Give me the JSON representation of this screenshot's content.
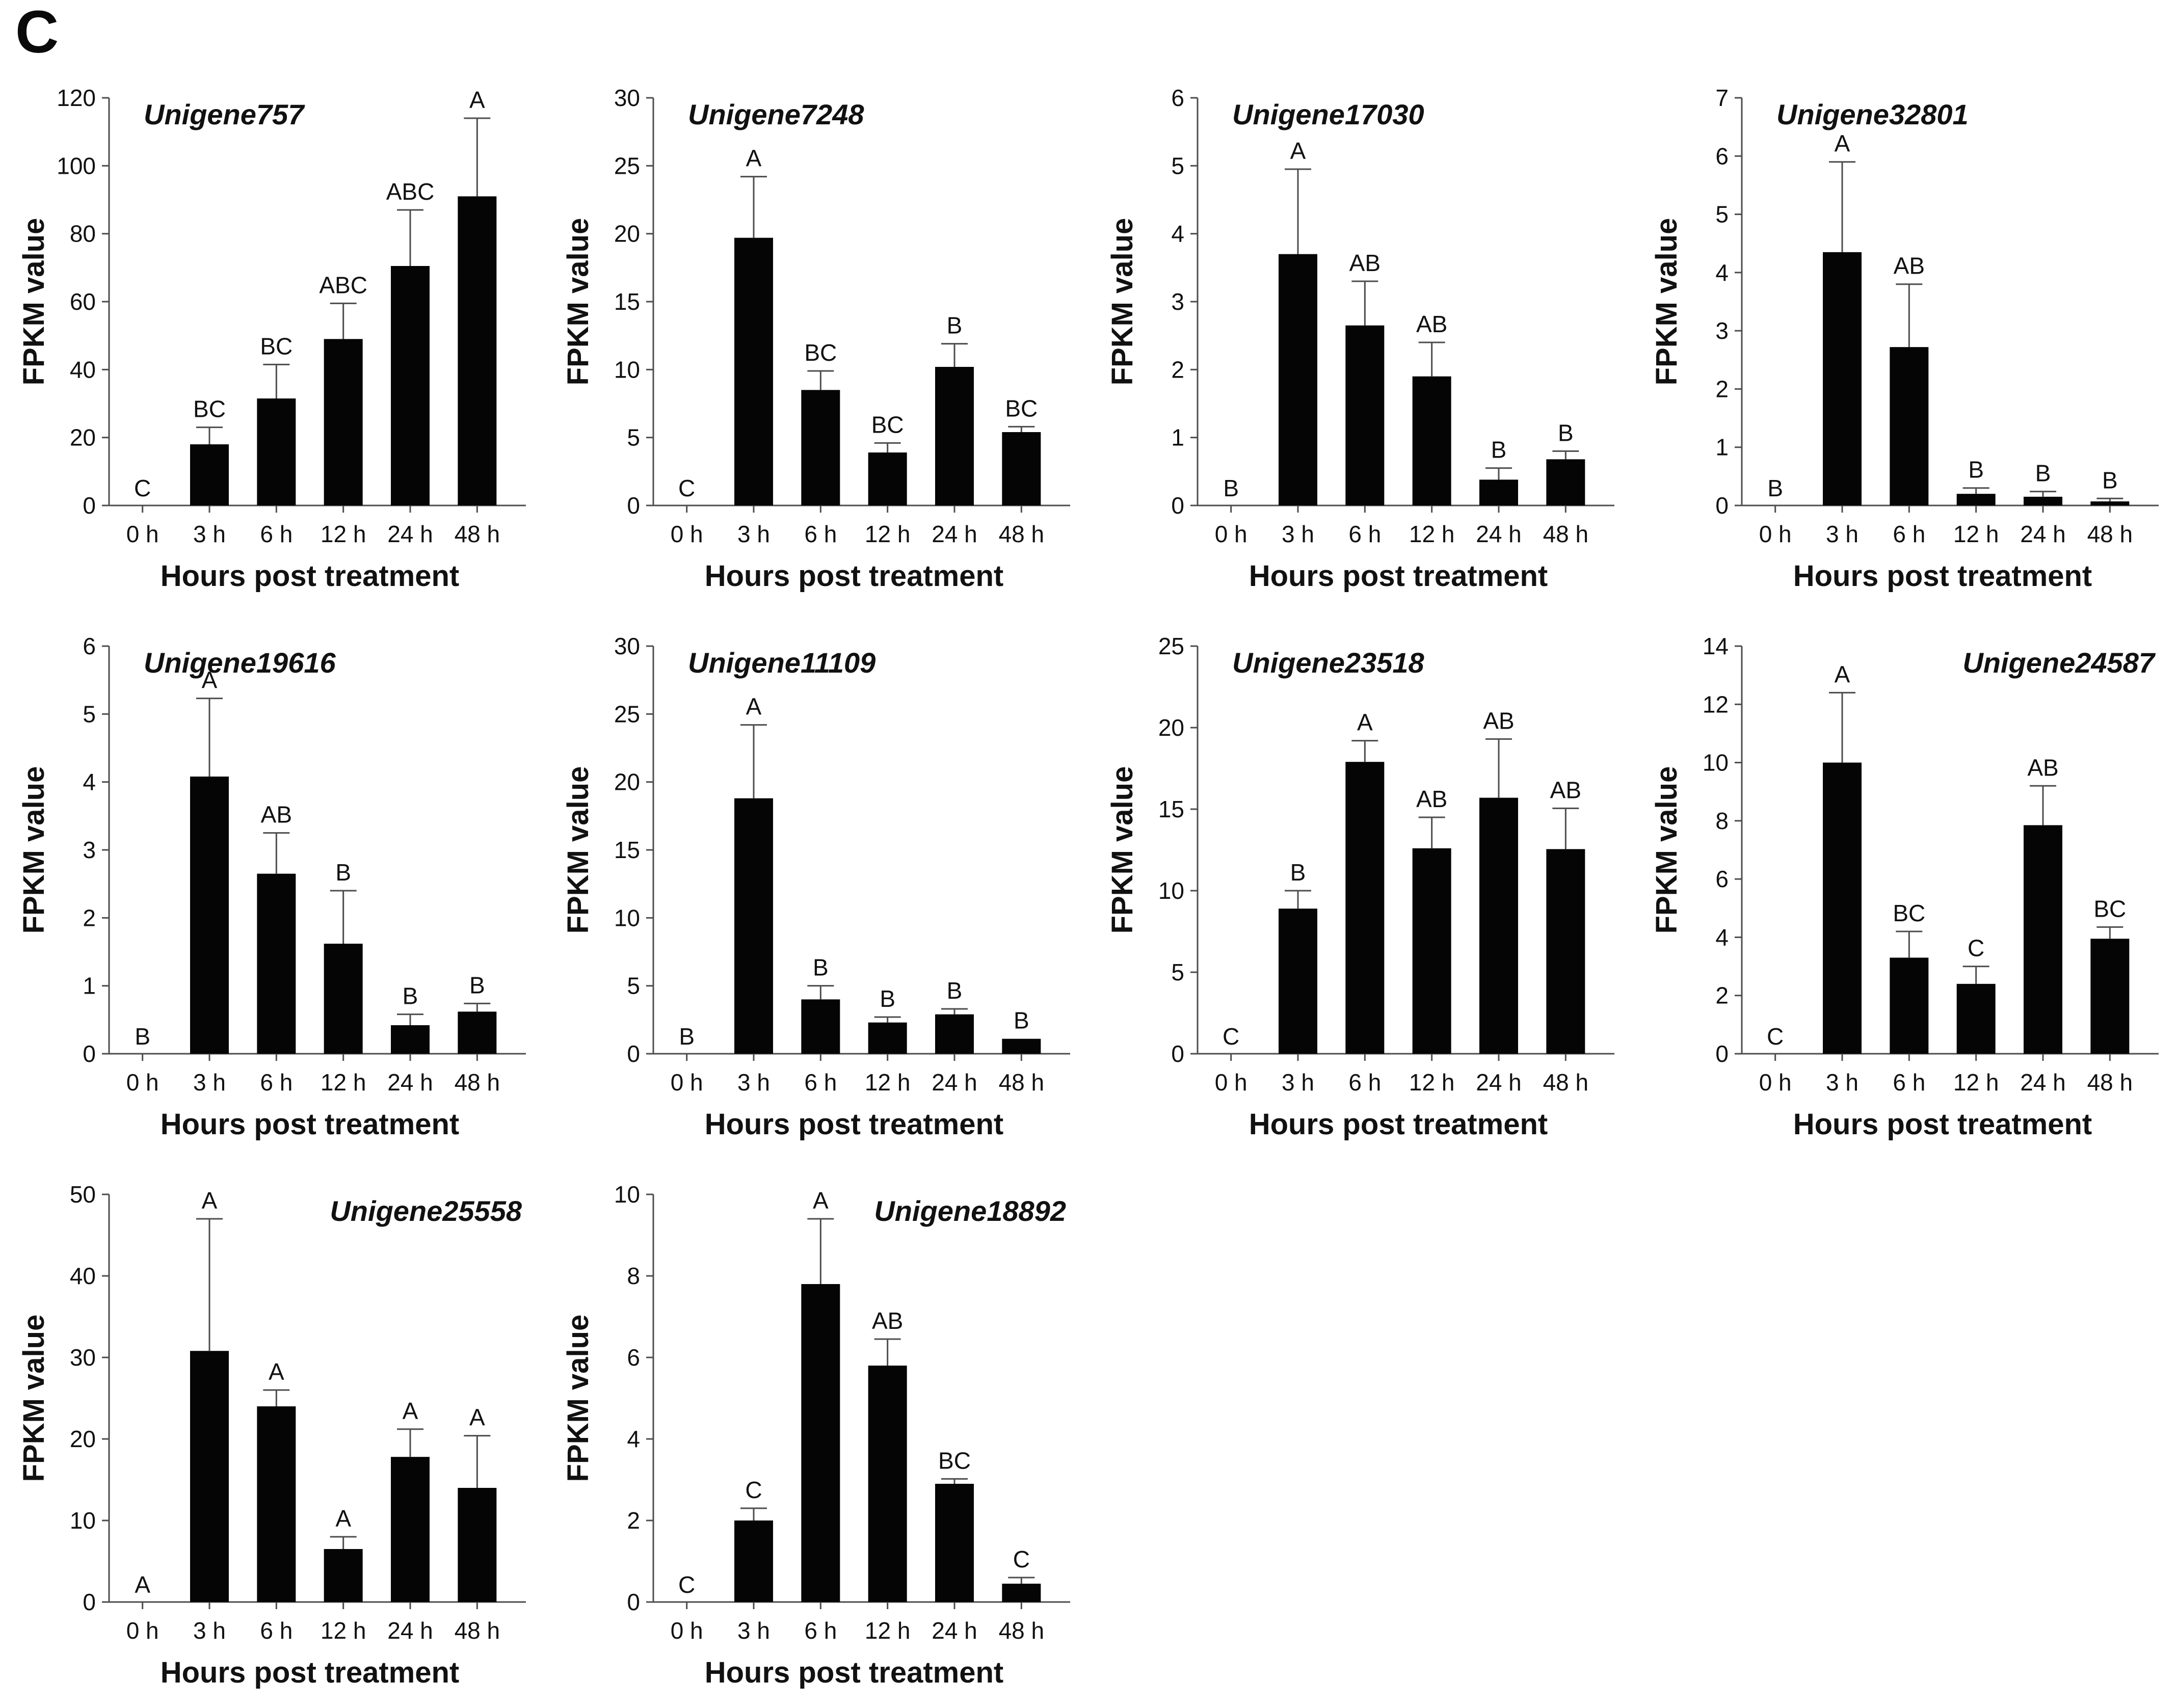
{
  "panel_label": "C",
  "shared": {
    "ylabel": "FPKM value",
    "xlabel": "Hours post treatment",
    "categories": [
      "0 h",
      "3 h",
      "6 h",
      "12 h",
      "24 h",
      "48 h"
    ],
    "bar_color": "#050505",
    "axis_color": "#4d4d4d",
    "text_color": "#111111",
    "legend": "none",
    "grid": "off"
  },
  "chart_data": [
    {
      "type": "bar",
      "title": "Unigene757",
      "title_position": "left",
      "categories": [
        "0 h",
        "3 h",
        "6 h",
        "12 h",
        "24 h",
        "48 h"
      ],
      "values": [
        0,
        18,
        31.5,
        49,
        70.5,
        91
      ],
      "errors_upper": [
        0,
        5,
        10,
        10.5,
        16.5,
        23
      ],
      "sig_letters": [
        "C",
        "BC",
        "BC",
        "ABC",
        "ABC",
        "A"
      ],
      "ylim": [
        0,
        120
      ],
      "ytick_step": 20,
      "xlabel": "Hours post treatment",
      "ylabel": "FPKM value"
    },
    {
      "type": "bar",
      "title": "Unigene7248",
      "title_position": "left",
      "categories": [
        "0 h",
        "3 h",
        "6 h",
        "12 h",
        "24 h",
        "48 h"
      ],
      "values": [
        0,
        19.7,
        8.5,
        3.9,
        10.2,
        5.4
      ],
      "errors_upper": [
        0,
        4.5,
        1.4,
        0.7,
        1.7,
        0.4
      ],
      "sig_letters": [
        "C",
        "A",
        "BC",
        "BC",
        "B",
        "BC"
      ],
      "ylim": [
        0,
        30
      ],
      "ytick_step": 5,
      "xlabel": "Hours post treatment",
      "ylabel": "FPKM value"
    },
    {
      "type": "bar",
      "title": "Unigene17030",
      "title_position": "left",
      "categories": [
        "0 h",
        "3 h",
        "6 h",
        "12 h",
        "24 h",
        "48 h"
      ],
      "values": [
        0,
        3.7,
        2.65,
        1.9,
        0.38,
        0.68
      ],
      "errors_upper": [
        0,
        1.25,
        0.65,
        0.5,
        0.17,
        0.12
      ],
      "sig_letters": [
        "B",
        "A",
        "AB",
        "AB",
        "B",
        "B"
      ],
      "ylim": [
        0,
        6
      ],
      "ytick_step": 1,
      "xlabel": "Hours post treatment",
      "ylabel": "FPKM value"
    },
    {
      "type": "bar",
      "title": "Unigene32801",
      "title_position": "left",
      "categories": [
        "0 h",
        "3 h",
        "6 h",
        "12 h",
        "24 h",
        "48 h"
      ],
      "values": [
        0,
        4.35,
        2.72,
        0.2,
        0.15,
        0.07
      ],
      "errors_upper": [
        0,
        1.55,
        1.08,
        0.1,
        0.09,
        0.05
      ],
      "sig_letters": [
        "B",
        "A",
        "AB",
        "B",
        "B",
        "B"
      ],
      "ylim": [
        0,
        7
      ],
      "ytick_step": 1,
      "xlabel": "Hours post treatment",
      "ylabel": "FPKM value"
    },
    {
      "type": "bar",
      "title": "Unigene19616",
      "title_position": "left",
      "categories": [
        "0 h",
        "3 h",
        "6 h",
        "12 h",
        "24 h",
        "48 h"
      ],
      "values": [
        0,
        4.08,
        2.65,
        1.62,
        0.42,
        0.62
      ],
      "errors_upper": [
        0,
        1.15,
        0.6,
        0.78,
        0.16,
        0.12
      ],
      "sig_letters": [
        "B",
        "A",
        "AB",
        "B",
        "B",
        "B"
      ],
      "ylim": [
        0,
        6
      ],
      "ytick_step": 1,
      "xlabel": "Hours post treatment",
      "ylabel": "FPKM value"
    },
    {
      "type": "bar",
      "title": "Unigene11109",
      "title_position": "left",
      "categories": [
        "0 h",
        "3 h",
        "6 h",
        "12 h",
        "24 h",
        "48 h"
      ],
      "values": [
        0,
        18.8,
        4.0,
        2.3,
        2.9,
        1.1
      ],
      "errors_upper": [
        0,
        5.4,
        1.0,
        0.4,
        0.4,
        0
      ],
      "sig_letters": [
        "B",
        "A",
        "B",
        "B",
        "B",
        "B"
      ],
      "ylim": [
        0,
        30
      ],
      "ytick_step": 5,
      "xlabel": "Hours post treatment",
      "ylabel": "FPKM value"
    },
    {
      "type": "bar",
      "title": "Unigene23518",
      "title_position": "left",
      "categories": [
        "0 h",
        "3 h",
        "6 h",
        "12 h",
        "24 h",
        "48 h"
      ],
      "values": [
        0,
        8.9,
        17.9,
        12.6,
        15.7,
        12.55
      ],
      "errors_upper": [
        0,
        1.1,
        1.3,
        1.9,
        3.6,
        2.5
      ],
      "sig_letters": [
        "C",
        "B",
        "A",
        "AB",
        "AB",
        "AB"
      ],
      "ylim": [
        0,
        25
      ],
      "ytick_step": 5,
      "xlabel": "Hours post treatment",
      "ylabel": "FPKM value"
    },
    {
      "type": "bar",
      "title": "Unigene24587",
      "title_position": "right",
      "categories": [
        "0 h",
        "3 h",
        "6 h",
        "12 h",
        "24 h",
        "48 h"
      ],
      "values": [
        0,
        10.0,
        3.3,
        2.4,
        7.85,
        3.95
      ],
      "errors_upper": [
        0,
        2.4,
        0.9,
        0.6,
        1.35,
        0.4
      ],
      "sig_letters": [
        "C",
        "A",
        "BC",
        "C",
        "AB",
        "BC"
      ],
      "ylim": [
        0,
        14
      ],
      "ytick_step": 2,
      "xlabel": "Hours post treatment",
      "ylabel": "FPKM value"
    },
    {
      "type": "bar",
      "title": "Unigene25558",
      "title_position": "right",
      "categories": [
        "0 h",
        "3 h",
        "6 h",
        "12 h",
        "24 h",
        "48 h"
      ],
      "values": [
        0,
        30.8,
        24.0,
        6.5,
        17.8,
        14.0
      ],
      "errors_upper": [
        0,
        16.2,
        2.0,
        1.5,
        3.4,
        6.4
      ],
      "sig_letters": [
        "A",
        "A",
        "A",
        "A",
        "A",
        "A"
      ],
      "ylim": [
        0,
        50
      ],
      "ytick_step": 10,
      "xlabel": "Hours post treatment",
      "ylabel": "FPKM value"
    },
    {
      "type": "bar",
      "title": "Unigene18892",
      "title_position": "right",
      "categories": [
        "0 h",
        "3 h",
        "6 h",
        "12 h",
        "24 h",
        "48 h"
      ],
      "values": [
        0,
        2.0,
        7.8,
        5.8,
        2.9,
        0.45
      ],
      "errors_upper": [
        0,
        0.3,
        1.6,
        0.65,
        0.12,
        0.15
      ],
      "sig_letters": [
        "C",
        "C",
        "A",
        "AB",
        "BC",
        "C"
      ],
      "ylim": [
        0,
        10
      ],
      "ytick_step": 2,
      "xlabel": "Hours post treatment",
      "ylabel": "FPKM value"
    }
  ]
}
